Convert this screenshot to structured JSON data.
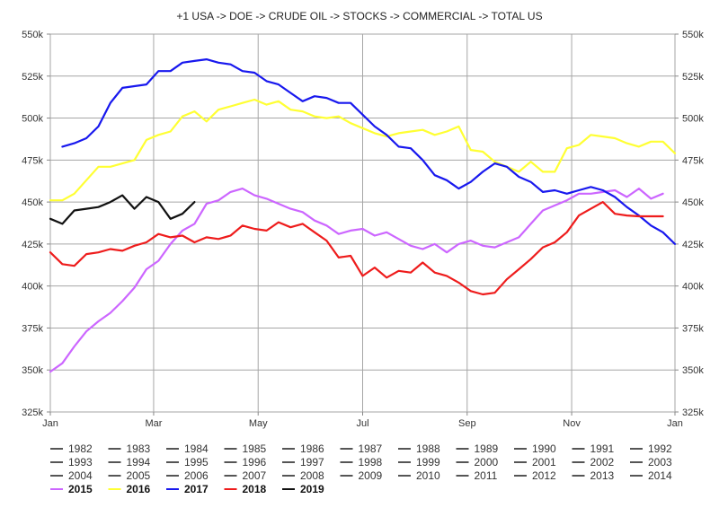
{
  "chart_data": {
    "type": "line",
    "title": "+1 USA -> DOE -> CRUDE OIL -> STOCKS -> COMMERCIAL -> TOTAL US",
    "x_ticks": [
      "Jan",
      "Mar",
      "May",
      "Jul",
      "Sep",
      "Nov",
      "Jan"
    ],
    "y_ticks": [
      "325k",
      "350k",
      "375k",
      "400k",
      "425k",
      "450k",
      "475k",
      "500k",
      "525k",
      "550k"
    ],
    "ylim": [
      325,
      550
    ],
    "y_unit": "k",
    "grid": true,
    "legend_position": "bottom",
    "legend_inactive": [
      "1982",
      "1983",
      "1984",
      "1985",
      "1986",
      "1987",
      "1988",
      "1989",
      "1990",
      "1991",
      "1992",
      "1993",
      "1994",
      "1995",
      "1996",
      "1997",
      "1998",
      "1999",
      "2000",
      "2001",
      "2002",
      "2003",
      "2004",
      "2005",
      "2006",
      "2007",
      "2008",
      "2009",
      "2010",
      "2011",
      "2012",
      "2013",
      "2014"
    ],
    "inactive_color": "#555555",
    "series": [
      {
        "name": "2015",
        "color": "#cc66ff",
        "week_start": 0,
        "values": [
          349,
          354,
          364,
          373,
          379,
          384,
          391,
          399,
          410,
          415,
          425,
          433,
          437,
          449,
          451,
          456,
          458,
          454,
          452,
          449,
          446,
          444,
          439,
          436,
          431,
          433,
          434,
          430,
          432,
          428,
          424,
          422,
          425,
          420,
          425,
          427,
          424,
          423,
          426,
          429,
          437,
          445,
          448,
          451,
          455,
          455,
          456,
          457,
          453,
          458,
          452,
          455
        ]
      },
      {
        "name": "2016",
        "color": "#ffff33",
        "week_start": 0,
        "values": [
          451,
          451,
          455,
          463,
          471,
          471,
          473,
          475,
          487,
          490,
          492,
          501,
          504,
          498,
          505,
          507,
          509,
          511,
          508,
          510,
          505,
          504,
          501,
          500,
          501,
          497,
          494,
          491,
          489,
          491,
          492,
          493,
          490,
          492,
          495,
          481,
          480,
          474,
          471,
          468,
          474,
          468,
          468,
          482,
          484,
          490,
          489,
          488,
          485,
          483,
          486,
          486,
          479
        ]
      },
      {
        "name": "2017",
        "color": "#1818ee",
        "week_start": 1,
        "values": [
          483,
          485,
          488,
          495,
          509,
          518,
          519,
          520,
          528,
          528,
          533,
          534,
          535,
          533,
          532,
          528,
          527,
          522,
          520,
          515,
          510,
          513,
          512,
          509,
          509,
          502,
          495,
          490,
          483,
          482,
          475,
          466,
          463,
          458,
          462,
          468,
          473,
          471,
          465,
          462,
          456,
          457,
          455,
          457,
          459,
          457,
          453,
          447,
          442,
          436,
          432,
          425
        ]
      },
      {
        "name": "2018",
        "color": "#ee1c1c",
        "week_start": 0,
        "values": [
          420,
          413,
          412,
          419,
          420,
          422,
          421,
          424,
          426,
          431,
          429,
          430,
          426,
          429,
          428,
          430,
          436,
          434,
          433,
          438,
          435,
          437,
          432,
          427,
          417,
          418,
          406,
          411,
          405,
          409,
          408,
          414,
          408,
          406,
          402,
          397,
          395,
          396,
          404,
          410,
          416,
          423,
          426,
          432,
          442,
          446,
          450,
          443,
          442,
          441.5,
          441.5,
          441.5
        ]
      },
      {
        "name": "2019",
        "color": "#111111",
        "week_start": 0,
        "values": [
          440,
          437,
          445,
          446,
          447,
          450,
          454,
          446,
          453,
          450,
          440,
          443,
          450
        ]
      }
    ]
  }
}
